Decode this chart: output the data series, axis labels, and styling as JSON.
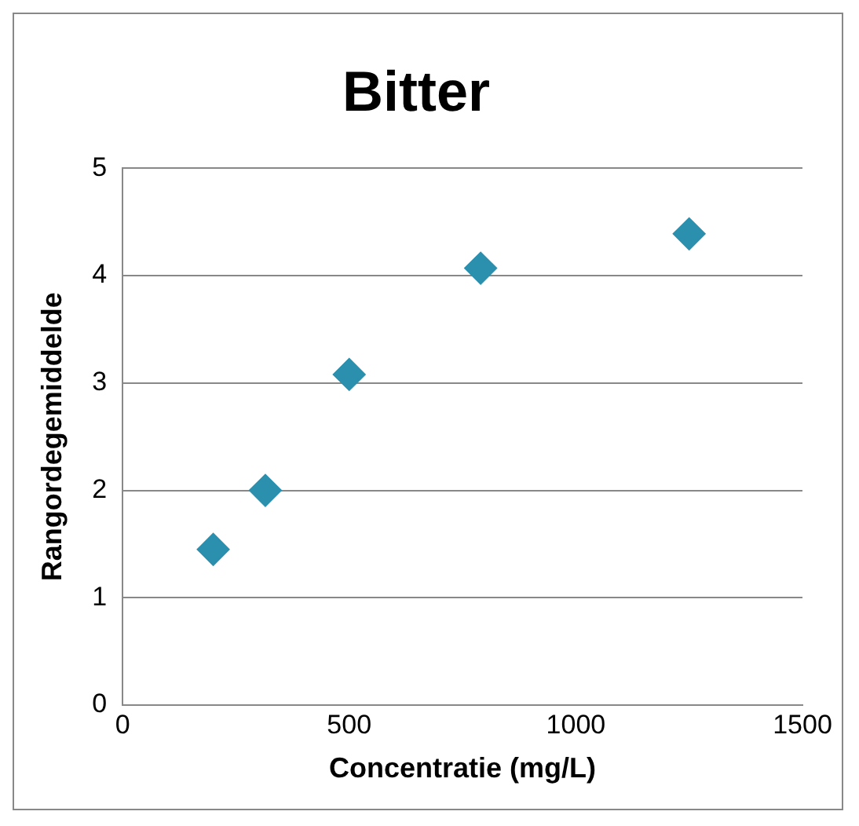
{
  "chart_data": {
    "type": "scatter",
    "title": "Bitter",
    "xlabel": "Concentratie (mg/L)",
    "ylabel": "Rangordegemiddelde",
    "x": [
      200,
      315,
      500,
      790,
      1250
    ],
    "values": [
      1.45,
      2.0,
      3.08,
      4.07,
      4.39
    ],
    "color": "#2b8fae",
    "marker": "diamond",
    "xlim": [
      0,
      1500
    ],
    "xticks": [
      0,
      500,
      1000,
      1500
    ],
    "ylim": [
      0,
      5
    ],
    "yticks": [
      0,
      1,
      2,
      3,
      4,
      5
    ],
    "grid": "y",
    "legend": false
  }
}
